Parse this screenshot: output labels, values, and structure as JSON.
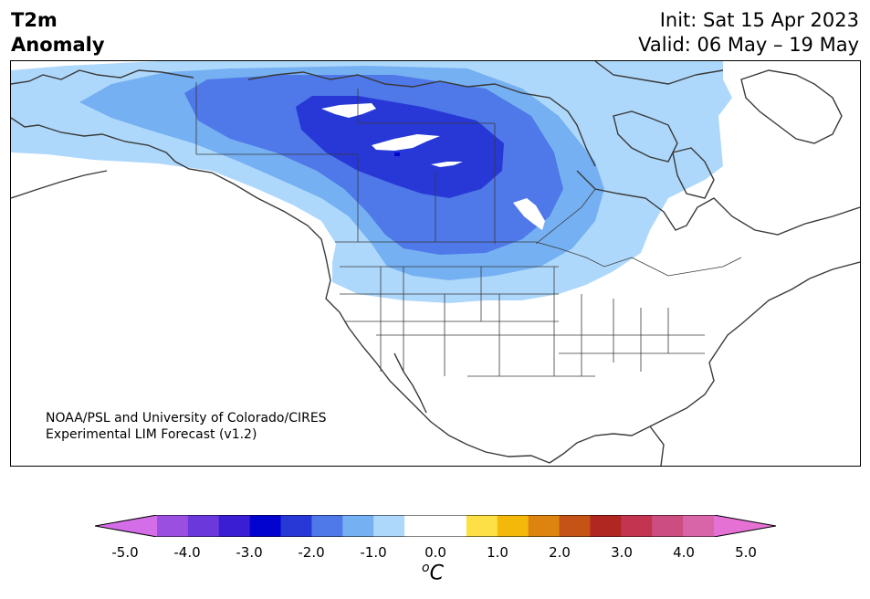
{
  "header": {
    "title_line1": "T2m",
    "title_line2": "Anomaly",
    "init": "Init: Sat 15 Apr 2023",
    "valid": "Valid: 06 May – 19 May"
  },
  "map": {
    "region": "North America",
    "credit_line1": "NOAA/PSL and University of Colorado/CIRES",
    "credit_line2": "Experimental LIM Forecast (v1.2)",
    "anomaly_levels": [
      {
        "range": "-0.5 to -1.0",
        "color": "#aed8fb"
      },
      {
        "range": "-1.0 to -1.5",
        "color": "#75b0f2"
      },
      {
        "range": "-1.5 to -2.0",
        "color": "#4f78e8"
      },
      {
        "range": "-2.0 to -2.5",
        "color": "#2738d6"
      },
      {
        "range": "-2.5 to -3.0",
        "color": "#0303cf"
      }
    ]
  },
  "colorbar": {
    "colors": [
      "#d46ee8",
      "#9b4fe0",
      "#6a38db",
      "#3a1ed3",
      "#0303cf",
      "#2738d6",
      "#4f78e8",
      "#75b0f2",
      "#aed8fb",
      "#ffffff",
      "#ffffff",
      "#fde045",
      "#f3b80a",
      "#dd8410",
      "#c45315",
      "#b02620",
      "#c33450",
      "#cc4e80",
      "#d765a8",
      "#e571d5"
    ],
    "tick_labels": [
      "-5.0",
      "-4.0",
      "-3.0",
      "-2.0",
      "-1.0",
      "0.0",
      "1.0",
      "2.0",
      "3.0",
      "4.0",
      "5.0"
    ],
    "unit_base": "C",
    "unit_sup": "o"
  }
}
